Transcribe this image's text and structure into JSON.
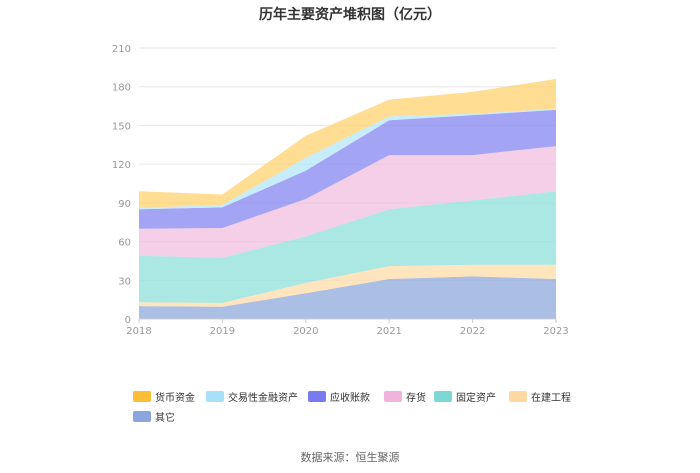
{
  "chart_data": {
    "type": "area",
    "stacked": true,
    "title": "历年主要资产堆积图（亿元）",
    "x": [
      "2018",
      "2019",
      "2020",
      "2021",
      "2022",
      "2023"
    ],
    "ylim": [
      0,
      210
    ],
    "yticks": [
      0,
      30,
      60,
      90,
      120,
      150,
      180,
      210
    ],
    "grid": true,
    "legend_position": "bottom",
    "series": [
      {
        "name": "其它",
        "color": "#8fa9dc",
        "values": [
          10,
          9.5,
          20,
          31,
          33,
          31
        ]
      },
      {
        "name": "在建工程",
        "color": "#ffdca8",
        "values": [
          3,
          3,
          8,
          10,
          9,
          11
        ]
      },
      {
        "name": "固定资产",
        "color": "#8fdfd9",
        "values": [
          36,
          35,
          36,
          44,
          50,
          57
        ]
      },
      {
        "name": "存货",
        "color": "#f0bfdf",
        "values": [
          21,
          23,
          29,
          42,
          35,
          35
        ]
      },
      {
        "name": "应收账款",
        "color": "#8585f2",
        "values": [
          15,
          16,
          22,
          27,
          31,
          28
        ]
      },
      {
        "name": "交易性金融资产",
        "color": "#b5e7f8",
        "values": [
          1,
          2,
          10,
          3,
          1,
          1
        ]
      },
      {
        "name": "货币资金",
        "color": "#ffd26e",
        "values": [
          13,
          8,
          17,
          13,
          17,
          23
        ]
      }
    ],
    "legend_order": [
      "货币资金",
      "交易性金融资产",
      "应收账款",
      "存货",
      "固定资产",
      "在建工程",
      "其它"
    ],
    "legend_swatch_colors": {
      "货币资金": "#fdbd36",
      "交易性金融资产": "#a7e0f8",
      "应收账款": "#7979f2",
      "存货": "#f0b3dc",
      "固定资产": "#7dd8d4",
      "在建工程": "#ffd9a0",
      "其它": "#8aa6dc"
    }
  },
  "source_label": "数据来源：恒生聚源"
}
